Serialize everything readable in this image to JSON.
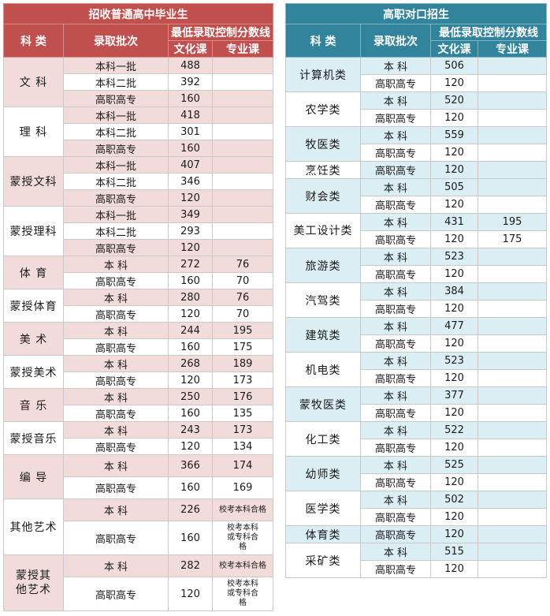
{
  "left": {
    "title": "招收普通高中毕业生",
    "headers": {
      "category": "科  类",
      "batch": "录取批次",
      "min_score": "最低录取控制分数线",
      "culture": "文化课",
      "major": "专业课"
    },
    "groups": [
      {
        "name": "文  科",
        "rows": [
          {
            "batch": "本科一批",
            "culture": "488",
            "major": ""
          },
          {
            "batch": "本科二批",
            "culture": "392",
            "major": ""
          },
          {
            "batch": "高职高专",
            "culture": "160",
            "major": ""
          }
        ]
      },
      {
        "name": "理  科",
        "rows": [
          {
            "batch": "本科一批",
            "culture": "418",
            "major": ""
          },
          {
            "batch": "本科二批",
            "culture": "301",
            "major": ""
          },
          {
            "batch": "高职高专",
            "culture": "160",
            "major": ""
          }
        ]
      },
      {
        "name": "蒙授文科",
        "rows": [
          {
            "batch": "本科一批",
            "culture": "407",
            "major": ""
          },
          {
            "batch": "本科二批",
            "culture": "346",
            "major": ""
          },
          {
            "batch": "高职高专",
            "culture": "120",
            "major": ""
          }
        ]
      },
      {
        "name": "蒙授理科",
        "rows": [
          {
            "batch": "本科一批",
            "culture": "349",
            "major": ""
          },
          {
            "batch": "本科二批",
            "culture": "293",
            "major": ""
          },
          {
            "batch": "高职高专",
            "culture": "120",
            "major": ""
          }
        ]
      },
      {
        "name": "体  育",
        "rows": [
          {
            "batch": "本  科",
            "culture": "272",
            "major": "76"
          },
          {
            "batch": "高职高专",
            "culture": "160",
            "major": "70"
          }
        ]
      },
      {
        "name": "蒙授体育",
        "rows": [
          {
            "batch": "本  科",
            "culture": "280",
            "major": "76"
          },
          {
            "batch": "高职高专",
            "culture": "120",
            "major": "70"
          }
        ]
      },
      {
        "name": "美  术",
        "rows": [
          {
            "batch": "本  科",
            "culture": "244",
            "major": "195"
          },
          {
            "batch": "高职高专",
            "culture": "160",
            "major": "175"
          }
        ]
      },
      {
        "name": "蒙授美术",
        "rows": [
          {
            "batch": "本  科",
            "culture": "268",
            "major": "189"
          },
          {
            "batch": "高职高专",
            "culture": "120",
            "major": "173"
          }
        ]
      },
      {
        "name": "音  乐",
        "rows": [
          {
            "batch": "本  科",
            "culture": "250",
            "major": "176"
          },
          {
            "batch": "高职高专",
            "culture": "160",
            "major": "135"
          }
        ]
      },
      {
        "name": "蒙授音乐",
        "rows": [
          {
            "batch": "本  科",
            "culture": "243",
            "major": "173"
          },
          {
            "batch": "高职高专",
            "culture": "120",
            "major": "134"
          }
        ]
      },
      {
        "name": "编  导",
        "rows": [
          {
            "batch": "本  科",
            "culture": "366",
            "major": "174"
          },
          {
            "batch": "高职高专",
            "culture": "160",
            "major": "169"
          }
        ]
      },
      {
        "name": "其他艺术",
        "rows": [
          {
            "batch": "本  科",
            "culture": "226",
            "major": "校考本科合格"
          },
          {
            "batch": "高职高专",
            "culture": "160",
            "major": "校考本科或专科合格"
          }
        ]
      },
      {
        "name": "蒙授其他艺术",
        "rows": [
          {
            "batch": "本  科",
            "culture": "282",
            "major": "校考本科合格"
          },
          {
            "batch": "高职高专",
            "culture": "120",
            "major": "校考本科或专科合格"
          }
        ]
      }
    ]
  },
  "right": {
    "title": "高职对口招生",
    "headers": {
      "category": "科  类",
      "batch": "录取批次",
      "min_score": "最低录取控制分数线",
      "culture": "文化课",
      "major": "专业课"
    },
    "groups": [
      {
        "name": "计算机类",
        "rows": [
          {
            "batch": "本  科",
            "culture": "506",
            "major": ""
          },
          {
            "batch": "高职高专",
            "culture": "120",
            "major": ""
          }
        ]
      },
      {
        "name": "农学类",
        "rows": [
          {
            "batch": "本  科",
            "culture": "520",
            "major": ""
          },
          {
            "batch": "高职高专",
            "culture": "120",
            "major": ""
          }
        ]
      },
      {
        "name": "牧医类",
        "rows": [
          {
            "batch": "本  科",
            "culture": "559",
            "major": ""
          },
          {
            "batch": "高职高专",
            "culture": "120",
            "major": ""
          }
        ]
      },
      {
        "name": "烹饪类",
        "rows": [
          {
            "batch": "高职高专",
            "culture": "120",
            "major": ""
          }
        ]
      },
      {
        "name": "财会类",
        "rows": [
          {
            "batch": "本  科",
            "culture": "505",
            "major": ""
          },
          {
            "batch": "高职高专",
            "culture": "120",
            "major": ""
          }
        ]
      },
      {
        "name": "美工设计类",
        "rows": [
          {
            "batch": "本  科",
            "culture": "431",
            "major": "195"
          },
          {
            "batch": "高职高专",
            "culture": "120",
            "major": "175"
          }
        ]
      },
      {
        "name": "旅游类",
        "rows": [
          {
            "batch": "本  科",
            "culture": "523",
            "major": ""
          },
          {
            "batch": "高职高专",
            "culture": "120",
            "major": ""
          }
        ]
      },
      {
        "name": "汽驾类",
        "rows": [
          {
            "batch": "本  科",
            "culture": "384",
            "major": ""
          },
          {
            "batch": "高职高专",
            "culture": "120",
            "major": ""
          }
        ]
      },
      {
        "name": "建筑类",
        "rows": [
          {
            "batch": "本  科",
            "culture": "477",
            "major": ""
          },
          {
            "batch": "高职高专",
            "culture": "120",
            "major": ""
          }
        ]
      },
      {
        "name": "机电类",
        "rows": [
          {
            "batch": "本  科",
            "culture": "523",
            "major": ""
          },
          {
            "batch": "高职高专",
            "culture": "120",
            "major": ""
          }
        ]
      },
      {
        "name": "蒙牧医类",
        "rows": [
          {
            "batch": "本  科",
            "culture": "377",
            "major": ""
          },
          {
            "batch": "高职高专",
            "culture": "120",
            "major": ""
          }
        ]
      },
      {
        "name": "化工类",
        "rows": [
          {
            "batch": "本  科",
            "culture": "522",
            "major": ""
          },
          {
            "batch": "高职高专",
            "culture": "120",
            "major": ""
          }
        ]
      },
      {
        "name": "幼师类",
        "rows": [
          {
            "batch": "本  科",
            "culture": "525",
            "major": ""
          },
          {
            "batch": "高职高专",
            "culture": "120",
            "major": ""
          }
        ]
      },
      {
        "name": "医学类",
        "rows": [
          {
            "batch": "本  科",
            "culture": "502",
            "major": ""
          },
          {
            "batch": "高职高专",
            "culture": "120",
            "major": ""
          }
        ]
      },
      {
        "name": "体育类",
        "rows": [
          {
            "batch": "高职高专",
            "culture": "120",
            "major": ""
          }
        ]
      },
      {
        "name": "采矿类",
        "rows": [
          {
            "batch": "本  科",
            "culture": "515",
            "major": ""
          },
          {
            "batch": "高职高专",
            "culture": "120",
            "major": ""
          }
        ]
      }
    ]
  }
}
